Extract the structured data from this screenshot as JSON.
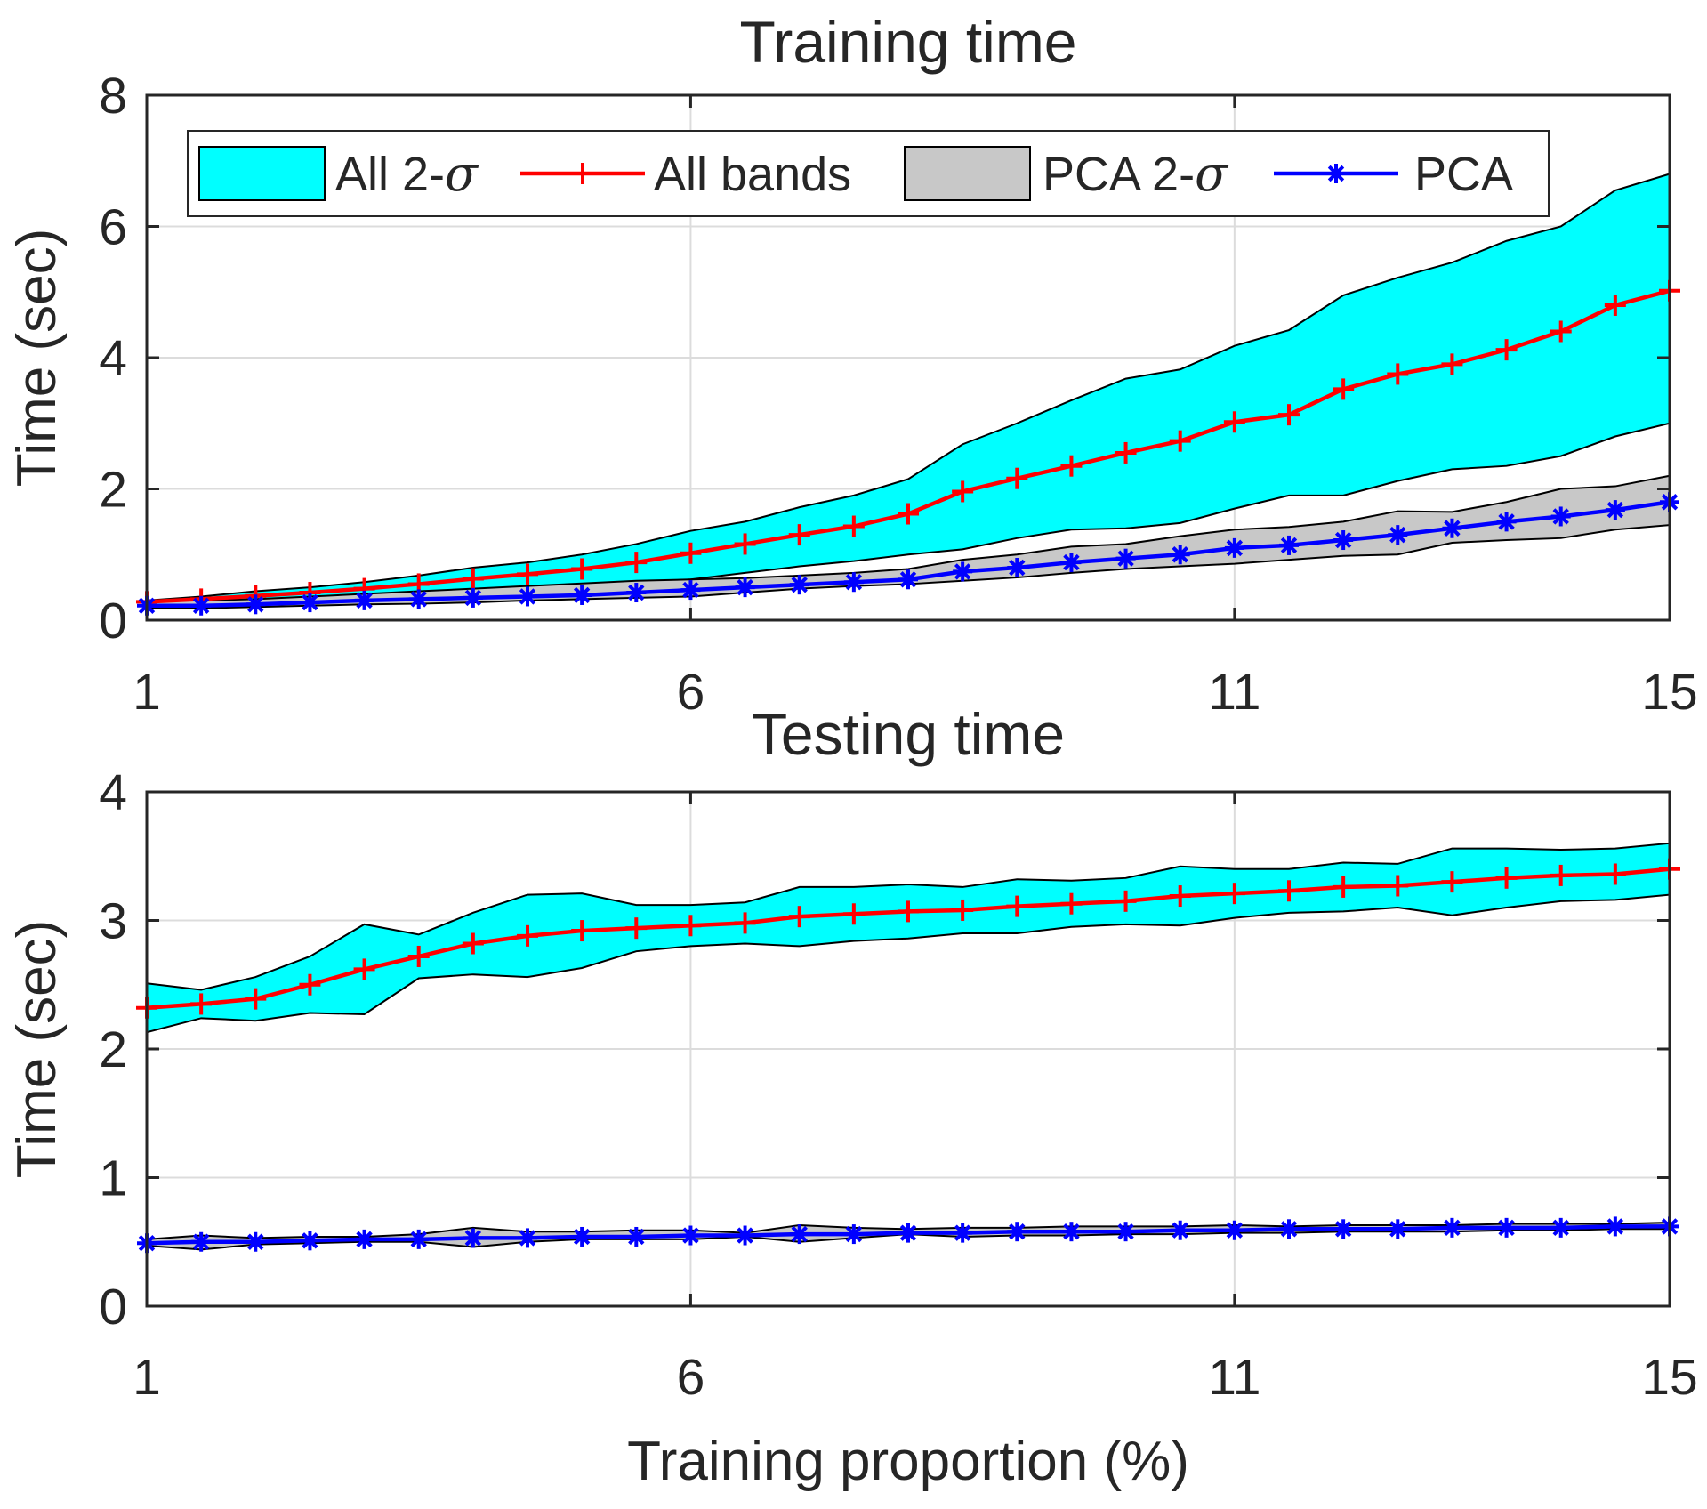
{
  "chart_data": [
    {
      "type": "line",
      "title": "Training time",
      "xlabel": "",
      "ylabel": "Time (sec)",
      "xlim": [
        1,
        15
      ],
      "ylim": [
        0,
        8
      ],
      "xticks": [
        1,
        6,
        11,
        15
      ],
      "yticks": [
        0,
        2,
        4,
        6,
        8
      ],
      "grid": true,
      "legend": {
        "placement": "top",
        "entries": [
          {
            "label": "All 2-",
            "greek": "σ",
            "kind": "band",
            "color": "#00ffff"
          },
          {
            "label": "All bands",
            "kind": "line",
            "marker": "+",
            "color": "#ff0000"
          },
          {
            "label": "PCA 2-",
            "greek": "σ",
            "kind": "band",
            "color": "#c8c8c8"
          },
          {
            "label": "PCA",
            "kind": "line",
            "marker": "*",
            "color": "#0000ff"
          }
        ]
      },
      "x": [
        1,
        1.5,
        2,
        2.5,
        3,
        3.5,
        4,
        4.5,
        5,
        5.5,
        6,
        6.5,
        7,
        7.5,
        8,
        8.5,
        9,
        9.5,
        10,
        10.5,
        11,
        11.5,
        12,
        12.5,
        13,
        13.5,
        14,
        14.5,
        15
      ],
      "series": [
        {
          "name": "All 2-σ",
          "kind": "band",
          "color": "#00ffff",
          "lower": [
            0.26,
            0.28,
            0.3,
            0.34,
            0.38,
            0.4,
            0.43,
            0.47,
            0.52,
            0.57,
            0.62,
            0.72,
            0.82,
            0.9,
            1.0,
            1.08,
            1.25,
            1.38,
            1.4,
            1.48,
            1.7,
            1.9,
            1.9,
            2.12,
            2.3,
            2.35,
            2.5,
            2.8,
            3.0
          ],
          "upper": [
            0.3,
            0.36,
            0.44,
            0.5,
            0.58,
            0.68,
            0.8,
            0.88,
            1.0,
            1.16,
            1.36,
            1.5,
            1.72,
            1.9,
            2.15,
            2.68,
            3.0,
            3.35,
            3.68,
            3.82,
            4.18,
            4.42,
            4.95,
            5.22,
            5.45,
            5.78,
            6.0,
            6.55,
            6.8
          ]
        },
        {
          "name": "All bands",
          "kind": "line",
          "marker": "+",
          "color": "#ff0000",
          "values": [
            0.28,
            0.32,
            0.37,
            0.42,
            0.48,
            0.55,
            0.63,
            0.7,
            0.78,
            0.88,
            1.02,
            1.16,
            1.3,
            1.43,
            1.62,
            1.96,
            2.16,
            2.35,
            2.55,
            2.73,
            3.02,
            3.13,
            3.52,
            3.75,
            3.9,
            4.12,
            4.4,
            4.8,
            5.02
          ]
        },
        {
          "name": "PCA 2-σ",
          "kind": "band",
          "color": "#c8c8c8",
          "lower": [
            0.18,
            0.18,
            0.2,
            0.22,
            0.24,
            0.25,
            0.27,
            0.3,
            0.32,
            0.34,
            0.36,
            0.42,
            0.48,
            0.52,
            0.55,
            0.6,
            0.65,
            0.72,
            0.78,
            0.82,
            0.86,
            0.92,
            0.98,
            1.0,
            1.18,
            1.22,
            1.25,
            1.38,
            1.45
          ],
          "upper": [
            0.3,
            0.3,
            0.32,
            0.36,
            0.4,
            0.44,
            0.48,
            0.52,
            0.56,
            0.6,
            0.62,
            0.64,
            0.68,
            0.72,
            0.78,
            0.92,
            1.0,
            1.12,
            1.16,
            1.28,
            1.38,
            1.42,
            1.5,
            1.66,
            1.65,
            1.8,
            2.0,
            2.04,
            2.2
          ]
        },
        {
          "name": "PCA",
          "kind": "line",
          "marker": "*",
          "color": "#0000ff",
          "values": [
            0.22,
            0.22,
            0.24,
            0.27,
            0.3,
            0.32,
            0.34,
            0.36,
            0.38,
            0.42,
            0.46,
            0.5,
            0.54,
            0.58,
            0.62,
            0.74,
            0.8,
            0.88,
            0.94,
            1.0,
            1.1,
            1.14,
            1.22,
            1.3,
            1.4,
            1.5,
            1.58,
            1.68,
            1.8
          ]
        }
      ]
    },
    {
      "type": "line",
      "title": "Testing time",
      "xlabel": "Training proportion (%)",
      "ylabel": "Time (sec)",
      "xlim": [
        1,
        15
      ],
      "ylim": [
        0,
        4
      ],
      "xticks": [
        1,
        6,
        11,
        15
      ],
      "yticks": [
        0,
        1,
        2,
        3,
        4
      ],
      "grid": true,
      "x": [
        1,
        1.5,
        2,
        2.5,
        3,
        3.5,
        4,
        4.5,
        5,
        5.5,
        6,
        6.5,
        7,
        7.5,
        8,
        8.5,
        9,
        9.5,
        10,
        10.5,
        11,
        11.5,
        12,
        12.5,
        13,
        13.5,
        14,
        14.5,
        15
      ],
      "series": [
        {
          "name": "All 2-σ",
          "kind": "band",
          "color": "#00ffff",
          "lower": [
            2.13,
            2.24,
            2.22,
            2.28,
            2.27,
            2.55,
            2.58,
            2.56,
            2.63,
            2.76,
            2.8,
            2.82,
            2.8,
            2.84,
            2.86,
            2.9,
            2.9,
            2.95,
            2.97,
            2.96,
            3.02,
            3.06,
            3.07,
            3.1,
            3.04,
            3.1,
            3.15,
            3.16,
            3.2
          ]
        },
        {
          "name": "All bands",
          "kind": "line",
          "marker": "+",
          "color": "#ff0000",
          "values": [
            2.32,
            2.35,
            2.39,
            2.5,
            2.62,
            2.72,
            2.82,
            2.88,
            2.92,
            2.94,
            2.96,
            2.98,
            3.03,
            3.05,
            3.07,
            3.08,
            3.11,
            3.13,
            3.15,
            3.19,
            3.21,
            3.23,
            3.26,
            3.27,
            3.3,
            3.33,
            3.35,
            3.36,
            3.4
          ]
        },
        {
          "name": "PCA 2-σ",
          "kind": "band",
          "color": "#c8c8c8",
          "lower": [
            0.47,
            0.44,
            0.48,
            0.49,
            0.5,
            0.5,
            0.46,
            0.5,
            0.52,
            0.52,
            0.52,
            0.54,
            0.5,
            0.53,
            0.56,
            0.54,
            0.55,
            0.55,
            0.56,
            0.56,
            0.57,
            0.57,
            0.58,
            0.58,
            0.58,
            0.59,
            0.59,
            0.6,
            0.6
          ],
          "upper": [
            0.52,
            0.55,
            0.53,
            0.54,
            0.54,
            0.56,
            0.61,
            0.58,
            0.58,
            0.59,
            0.59,
            0.57,
            0.63,
            0.61,
            0.6,
            0.61,
            0.61,
            0.62,
            0.62,
            0.62,
            0.63,
            0.62,
            0.63,
            0.63,
            0.63,
            0.64,
            0.64,
            0.64,
            0.65
          ]
        },
        {
          "name": "PCA",
          "kind": "line",
          "marker": "*",
          "color": "#0000ff",
          "values": [
            0.49,
            0.5,
            0.5,
            0.51,
            0.52,
            0.52,
            0.53,
            0.53,
            0.54,
            0.54,
            0.55,
            0.55,
            0.56,
            0.56,
            0.57,
            0.57,
            0.58,
            0.58,
            0.58,
            0.59,
            0.59,
            0.6,
            0.6,
            0.6,
            0.61,
            0.61,
            0.61,
            0.62,
            0.62
          ]
        }
      ]
    }
  ]
}
